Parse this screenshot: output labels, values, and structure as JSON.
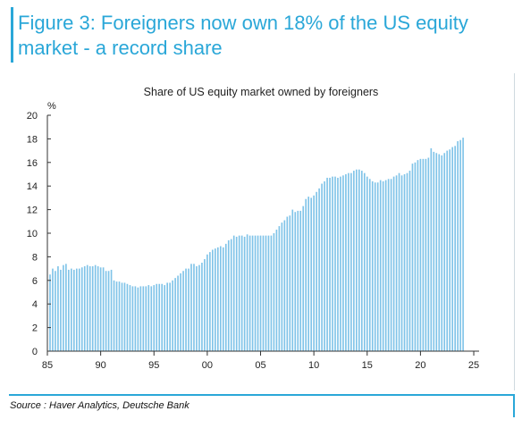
{
  "figure": {
    "title": "Figure 3: Foreigners now own 18% of the US equity market - a record share",
    "source": "Source : Haver Analytics, Deutsche Bank"
  },
  "chart_data": {
    "type": "bar",
    "title": "Share of US equity market owned by foreigners",
    "ylabel": "%",
    "xlabel": "",
    "ylim": [
      0,
      20
    ],
    "y_ticks": [
      0,
      2,
      4,
      6,
      8,
      10,
      12,
      14,
      16,
      18,
      20
    ],
    "x_tick_labels": [
      "85",
      "90",
      "95",
      "00",
      "05",
      "10",
      "15",
      "20",
      "25"
    ],
    "x_tick_years": [
      1985,
      1990,
      1995,
      2000,
      2005,
      2010,
      2015,
      2020,
      2025
    ],
    "x_range_years": [
      1985,
      2025.5
    ],
    "bar_color": "#7fc3e8",
    "frequency": "quarterly",
    "x_start": 1985.25,
    "values": [
      6.5,
      7.0,
      6.8,
      7.2,
      6.9,
      7.3,
      7.4,
      6.9,
      7.0,
      6.9,
      7.0,
      7.0,
      7.1,
      7.2,
      7.3,
      7.2,
      7.2,
      7.3,
      7.2,
      7.1,
      7.1,
      6.8,
      6.8,
      6.9,
      6.0,
      5.9,
      5.9,
      5.8,
      5.8,
      5.7,
      5.6,
      5.5,
      5.5,
      5.4,
      5.5,
      5.5,
      5.5,
      5.6,
      5.5,
      5.6,
      5.7,
      5.7,
      5.7,
      5.6,
      5.8,
      5.8,
      6.0,
      6.2,
      6.4,
      6.6,
      6.8,
      7.0,
      7.0,
      7.4,
      7.4,
      7.2,
      7.3,
      7.5,
      7.8,
      8.2,
      8.4,
      8.6,
      8.7,
      8.8,
      8.9,
      8.8,
      9.1,
      9.4,
      9.5,
      9.8,
      9.7,
      9.8,
      9.8,
      9.7,
      9.9,
      9.8,
      9.8,
      9.8,
      9.8,
      9.8,
      9.8,
      9.8,
      9.8,
      9.8,
      10.0,
      10.3,
      10.6,
      10.9,
      11.1,
      11.4,
      11.5,
      12.0,
      11.8,
      11.9,
      11.9,
      12.3,
      12.9,
      13.1,
      13.0,
      13.2,
      13.5,
      13.8,
      14.2,
      14.4,
      14.7,
      14.7,
      14.8,
      14.8,
      14.7,
      14.8,
      14.9,
      15.0,
      15.1,
      15.1,
      15.3,
      15.4,
      15.4,
      15.3,
      15.1,
      14.8,
      14.6,
      14.4,
      14.3,
      14.3,
      14.5,
      14.4,
      14.5,
      14.6,
      14.6,
      14.8,
      14.9,
      15.1,
      14.9,
      15.0,
      15.1,
      15.3,
      15.9,
      16.0,
      16.2,
      16.3,
      16.3,
      16.3,
      16.4,
      17.2,
      16.9,
      16.8,
      16.7,
      16.6,
      16.8,
      17.0,
      17.1,
      17.3,
      17.4,
      17.8,
      17.9,
      18.1
    ]
  }
}
